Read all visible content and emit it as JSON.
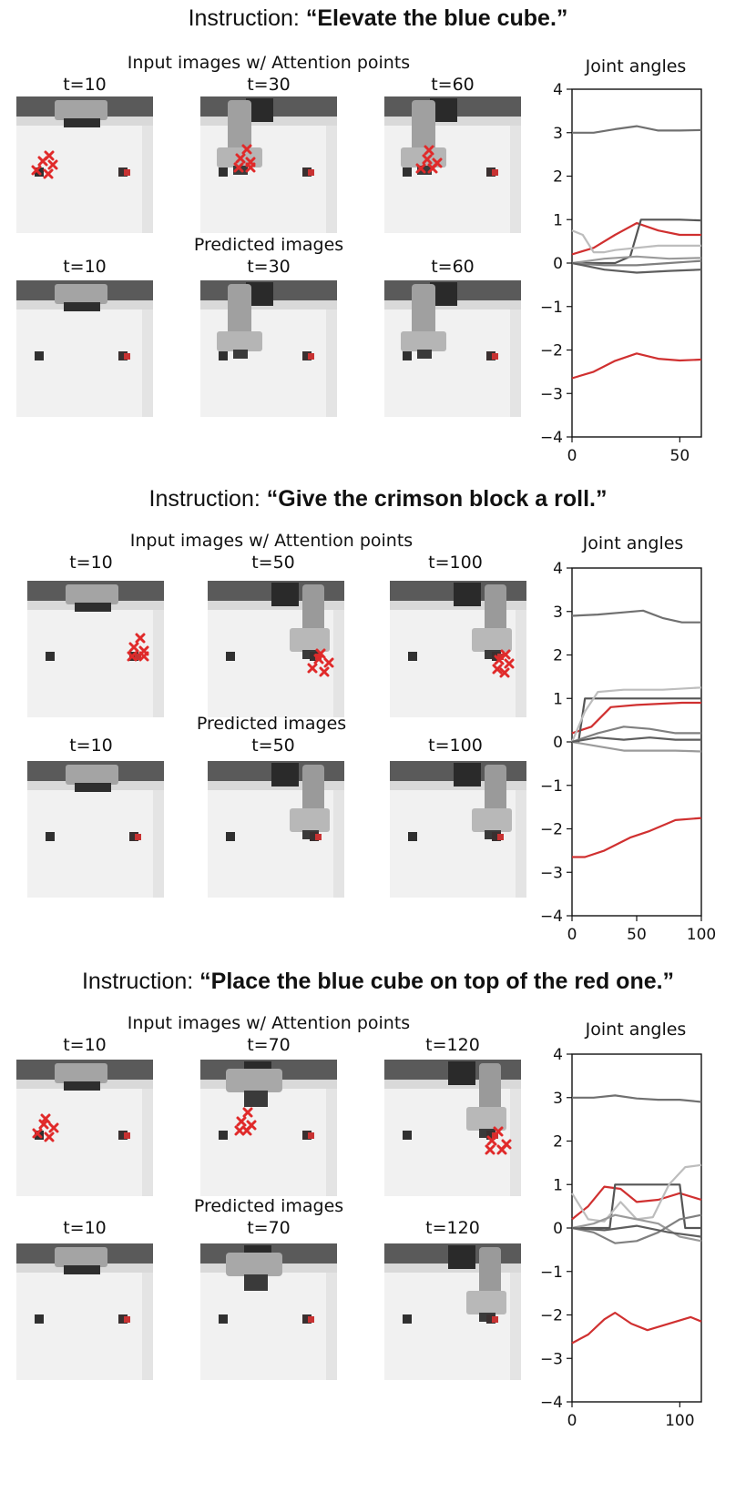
{
  "panels": [
    {
      "instruction_prefix": "Instruction: ",
      "instruction_quote": "“Elevate the blue cube.”",
      "input_label": "Input images w/ Attention points",
      "predicted_label": "Predicted images",
      "times": [
        "t=10",
        "t=30",
        "t=60"
      ],
      "chart_data": {
        "type": "line",
        "title": "Joint angles",
        "xlim": [
          0,
          60
        ],
        "ylim": [
          -4,
          4
        ],
        "xticks": [
          0,
          50
        ],
        "yticks": [
          4,
          3,
          2,
          1,
          0,
          -1,
          -2,
          -3,
          -4
        ],
        "series": [
          {
            "color": "#707070",
            "x": [
              0,
              10,
              20,
              30,
              40,
              50,
              60
            ],
            "y": [
              3.0,
              3.0,
              3.08,
              3.15,
              3.05,
              3.05,
              3.06
            ]
          },
          {
            "color": "#d03030",
            "x": [
              0,
              10,
              20,
              30,
              40,
              50,
              60
            ],
            "y": [
              0.2,
              0.35,
              0.65,
              0.92,
              0.75,
              0.65,
              0.65
            ]
          },
          {
            "color": "#d03030",
            "x": [
              0,
              10,
              20,
              30,
              40,
              50,
              60
            ],
            "y": [
              -2.65,
              -2.5,
              -2.25,
              -2.08,
              -2.2,
              -2.24,
              -2.22
            ]
          },
          {
            "color": "#555555",
            "x": [
              0,
              20,
              27,
              32,
              40,
              50,
              60
            ],
            "y": [
              0.0,
              0.0,
              0.15,
              1.0,
              1.0,
              1.0,
              0.98
            ]
          },
          {
            "color": "#bdbdbd",
            "x": [
              0,
              5,
              10,
              15,
              20,
              40,
              60
            ],
            "y": [
              0.75,
              0.65,
              0.25,
              0.25,
              0.3,
              0.4,
              0.4
            ]
          },
          {
            "color": "#9a9a9a",
            "x": [
              0,
              15,
              30,
              45,
              60
            ],
            "y": [
              0.0,
              0.1,
              0.15,
              0.1,
              0.12
            ]
          },
          {
            "color": "#808080",
            "x": [
              0,
              15,
              30,
              45,
              60
            ],
            "y": [
              0.0,
              -0.05,
              -0.05,
              0.0,
              0.05
            ]
          },
          {
            "color": "#5e5e5e",
            "x": [
              0,
              15,
              30,
              45,
              60
            ],
            "y": [
              0.0,
              -0.15,
              -0.22,
              -0.18,
              -0.15
            ]
          }
        ]
      }
    },
    {
      "instruction_prefix": "Instruction: ",
      "instruction_quote": "“Give the crimson block a roll.”",
      "input_label": "Input images w/ Attention points",
      "predicted_label": "Predicted images",
      "times": [
        "t=10",
        "t=50",
        "t=100"
      ],
      "chart_data": {
        "type": "line",
        "title": "Joint angles",
        "xlim": [
          0,
          100
        ],
        "ylim": [
          -4,
          4
        ],
        "xticks": [
          0,
          50,
          100
        ],
        "yticks": [
          4,
          3,
          2,
          1,
          0,
          -1,
          -2,
          -3,
          -4
        ],
        "series": [
          {
            "color": "#707070",
            "x": [
              0,
              20,
              40,
              55,
              70,
              85,
              100
            ],
            "y": [
              2.9,
              2.93,
              2.98,
              3.02,
              2.85,
              2.75,
              2.75
            ]
          },
          {
            "color": "#d03030",
            "x": [
              0,
              15,
              30,
              50,
              70,
              85,
              100
            ],
            "y": [
              0.2,
              0.35,
              0.8,
              0.85,
              0.88,
              0.9,
              0.9
            ]
          },
          {
            "color": "#d03030",
            "x": [
              0,
              10,
              25,
              45,
              60,
              80,
              100
            ],
            "y": [
              -2.65,
              -2.65,
              -2.5,
              -2.2,
              -2.05,
              -1.8,
              -1.75
            ]
          },
          {
            "color": "#555555",
            "x": [
              0,
              5,
              10,
              20,
              50,
              100
            ],
            "y": [
              0.0,
              0.0,
              1.0,
              1.0,
              1.0,
              1.0
            ]
          },
          {
            "color": "#bdbdbd",
            "x": [
              0,
              10,
              20,
              40,
              70,
              100
            ],
            "y": [
              0.0,
              0.7,
              1.15,
              1.2,
              1.2,
              1.25
            ]
          },
          {
            "color": "#808080",
            "x": [
              0,
              20,
              40,
              60,
              80,
              100
            ],
            "y": [
              0.0,
              0.2,
              0.35,
              0.3,
              0.2,
              0.2
            ]
          },
          {
            "color": "#9a9a9a",
            "x": [
              0,
              20,
              40,
              60,
              80,
              100
            ],
            "y": [
              0.0,
              -0.1,
              -0.2,
              -0.2,
              -0.2,
              -0.22
            ]
          },
          {
            "color": "#5e5e5e",
            "x": [
              0,
              20,
              40,
              60,
              80,
              100
            ],
            "y": [
              0.0,
              0.1,
              0.05,
              0.1,
              0.05,
              0.05
            ]
          }
        ]
      }
    },
    {
      "instruction_prefix": "Instruction: ",
      "instruction_quote": "“Place the blue cube on top of the red one.”",
      "input_label": "Input images w/ Attention points",
      "predicted_label": "Predicted images",
      "times": [
        "t=10",
        "t=70",
        "t=120"
      ],
      "chart_data": {
        "type": "line",
        "title": "Joint angles",
        "xlim": [
          0,
          120
        ],
        "ylim": [
          -4,
          4
        ],
        "xticks": [
          0,
          100
        ],
        "yticks": [
          4,
          3,
          2,
          1,
          0,
          -1,
          -2,
          -3,
          -4
        ],
        "series": [
          {
            "color": "#707070",
            "x": [
              0,
              20,
              40,
              60,
              80,
              100,
              120
            ],
            "y": [
              3.0,
              3.0,
              3.05,
              2.98,
              2.95,
              2.95,
              2.9
            ]
          },
          {
            "color": "#d03030",
            "x": [
              0,
              15,
              30,
              45,
              60,
              80,
              100,
              120
            ],
            "y": [
              0.2,
              0.5,
              0.95,
              0.9,
              0.6,
              0.65,
              0.8,
              0.65
            ]
          },
          {
            "color": "#d03030",
            "x": [
              0,
              15,
              30,
              40,
              55,
              70,
              90,
              110,
              120
            ],
            "y": [
              -2.65,
              -2.45,
              -2.1,
              -1.95,
              -2.2,
              -2.35,
              -2.2,
              -2.05,
              -2.15
            ]
          },
          {
            "color": "#555555",
            "x": [
              0,
              20,
              35,
              40,
              60,
              80,
              100,
              105,
              120
            ],
            "y": [
              0.0,
              0.0,
              0.0,
              1.0,
              1.0,
              1.0,
              1.0,
              0.0,
              0.0
            ]
          },
          {
            "color": "#bdbdbd",
            "x": [
              0,
              15,
              30,
              45,
              60,
              75,
              90,
              105,
              120
            ],
            "y": [
              0.8,
              0.2,
              0.15,
              0.6,
              0.2,
              0.25,
              1.0,
              1.4,
              1.45
            ]
          },
          {
            "color": "#9a9a9a",
            "x": [
              0,
              20,
              40,
              60,
              80,
              100,
              120
            ],
            "y": [
              0.0,
              0.1,
              0.3,
              0.2,
              0.1,
              -0.2,
              -0.3
            ]
          },
          {
            "color": "#808080",
            "x": [
              0,
              20,
              40,
              60,
              80,
              100,
              120
            ],
            "y": [
              0.0,
              -0.1,
              -0.35,
              -0.3,
              -0.1,
              0.2,
              0.3
            ]
          },
          {
            "color": "#5e5e5e",
            "x": [
              0,
              30,
              60,
              90,
              120
            ],
            "y": [
              0.0,
              -0.05,
              0.05,
              -0.1,
              -0.2
            ]
          }
        ]
      }
    }
  ]
}
